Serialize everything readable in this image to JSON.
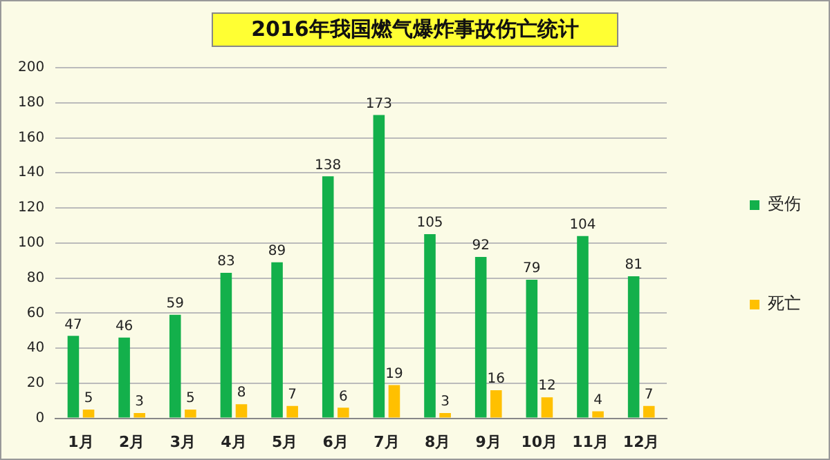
{
  "chart_data": {
    "type": "bar",
    "title": "2016年我国燃气爆炸事故伤亡统计",
    "categories": [
      "1月",
      "2月",
      "3月",
      "4月",
      "5月",
      "6月",
      "7月",
      "8月",
      "9月",
      "10月",
      "11月",
      "12月"
    ],
    "series": [
      {
        "name": "受伤",
        "color": "#13b04b",
        "values": [
          47,
          46,
          59,
          83,
          89,
          138,
          173,
          105,
          92,
          79,
          104,
          81
        ]
      },
      {
        "name": "死亡",
        "color": "#ffc000",
        "values": [
          5,
          3,
          5,
          8,
          7,
          6,
          19,
          3,
          16,
          12,
          4,
          7
        ]
      }
    ],
    "ylim": [
      0,
      200
    ],
    "yticks": [
      0,
      20,
      40,
      60,
      80,
      100,
      120,
      140,
      160,
      180,
      200
    ],
    "grid": "y",
    "legend": "right",
    "data_labels": true
  }
}
